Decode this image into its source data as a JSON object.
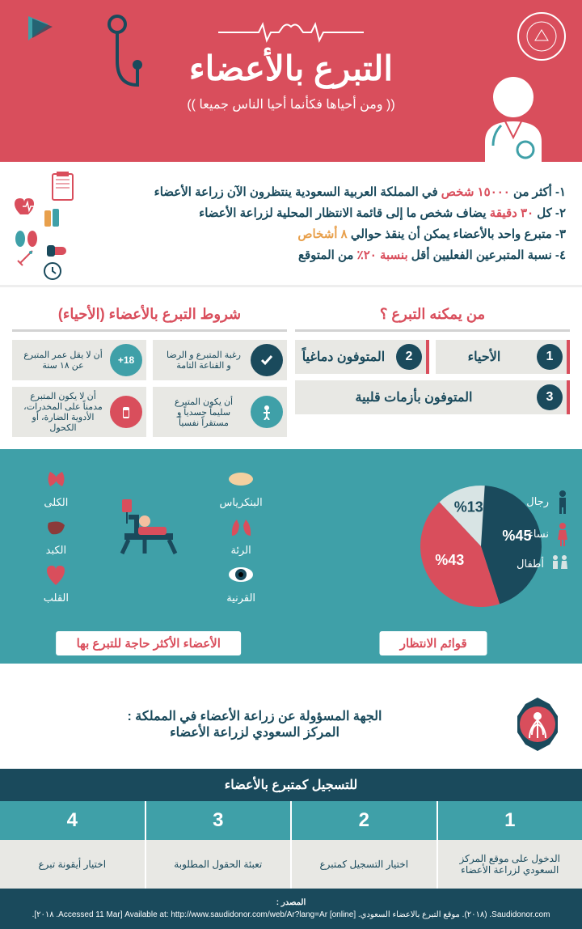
{
  "header": {
    "title": "التبرع بالأعضاء",
    "subtitle": "(( ومن أحياها فكأنما أحيا الناس جميعا ))",
    "bg_color": "#d94e5c",
    "media_logo": "MEDIA"
  },
  "facts": [
    {
      "prefix": "١- أكثر من ",
      "highlight": "١٥٠٠٠ شخص",
      "suffix": " في المملكة العربية السعودية ينتظرون الآن زراعة الأعضاء",
      "color": "#d94e5c"
    },
    {
      "prefix": "٢- كل ",
      "highlight": "٣٠ دقيقة",
      "suffix": " يضاف شخص ما إلى قائمة الانتظار المحلية لزراعة الأعضاء",
      "color": "#d94e5c"
    },
    {
      "prefix": "٣- متبرع واحد بالأعضاء يمكن أن ينقذ حوالي ",
      "highlight": "٨ أشخاص",
      "suffix": "",
      "color": "#e8a04c"
    },
    {
      "prefix": "٤- نسبة المتبرعين الفعليين أقل ",
      "highlight": "بنسبة ٢٠٪",
      "suffix": " من المتوقع",
      "color": "#d94e5c"
    }
  ],
  "who_can": {
    "title": "من يمكنه التبرع ؟",
    "items": [
      {
        "num": "1",
        "label": "الأحياء"
      },
      {
        "num": "2",
        "label": "المتوفون دماغياً"
      },
      {
        "num": "3",
        "label": "المتوفون بأزمات قلبية",
        "full": true
      }
    ]
  },
  "conditions": {
    "title": "شروط التبرع بالأعضاء (الأحياء)",
    "items": [
      {
        "icon": "check",
        "text": "رغبة المتبرع و الرضا و القناعة التامة"
      },
      {
        "icon": "age",
        "text": "أن لا يقل عمر المتبرع عن ١٨ سنة",
        "badge": "18+"
      },
      {
        "icon": "body",
        "text": "أن يكون المتبرع سليماً جسدياً و مستقراً نفسياً"
      },
      {
        "icon": "drug",
        "text": "أن لا يكون المتبرع مدمناً على المخدرات، الأدوية الضارة، أو الكحول"
      }
    ]
  },
  "pie": {
    "title": "قوائم الانتظار",
    "slices": [
      {
        "label": "رجال",
        "value": 45,
        "color": "#1a4a5c",
        "text": "%45"
      },
      {
        "label": "نساء",
        "value": 43,
        "color": "#d94e5c",
        "text": "%43"
      },
      {
        "label": "أطفال",
        "value": 13,
        "color": "#d8e4e4",
        "text": "%13"
      }
    ]
  },
  "organs": {
    "title": "الأعضاء الأكثر حاجة للتبرع بها",
    "items": [
      {
        "name": "البنكرياس",
        "color": "#f4d0a0"
      },
      {
        "name": "الكلى",
        "color": "#d94e5c"
      },
      {
        "name": "الرئة",
        "color": "#d94e5c"
      },
      {
        "name": "الكبد",
        "color": "#8b3a3a"
      },
      {
        "name": "القرنية",
        "color": "#1a4a5c"
      },
      {
        "name": "القلب",
        "color": "#d94e5c"
      }
    ]
  },
  "authority": {
    "line1": "الجهة المسؤولة عن زراعة الأعضاء في المملكة :",
    "line2": "المركز السعودي لزراعة الأعضاء"
  },
  "steps": {
    "title": "للتسجيل كمتبرع بالأعضاء",
    "items": [
      {
        "num": "1",
        "text": "الدخول على موقع المركز السعودي لزراعة الأعضاء"
      },
      {
        "num": "2",
        "text": "اختيار التسجيل كمتبرع"
      },
      {
        "num": "3",
        "text": "تعبئة الحقول المطلوبة"
      },
      {
        "num": "4",
        "text": "اختيار أيقونة تبرع"
      }
    ]
  },
  "footer": {
    "title": "المصدر :",
    "text": "Saudidonor.com. (٢٠١٨). موقع التبرع بالاعضاء السعودي. [online] Available at: http://www.saudidonor.com/web/Ar?lang=Ar [Accessed 11 Mar. ٢٠١٨]."
  },
  "colors": {
    "primary_red": "#d94e5c",
    "dark_teal": "#1a4a5c",
    "teal": "#3fa0a8",
    "light_gray": "#e8e8e4"
  }
}
